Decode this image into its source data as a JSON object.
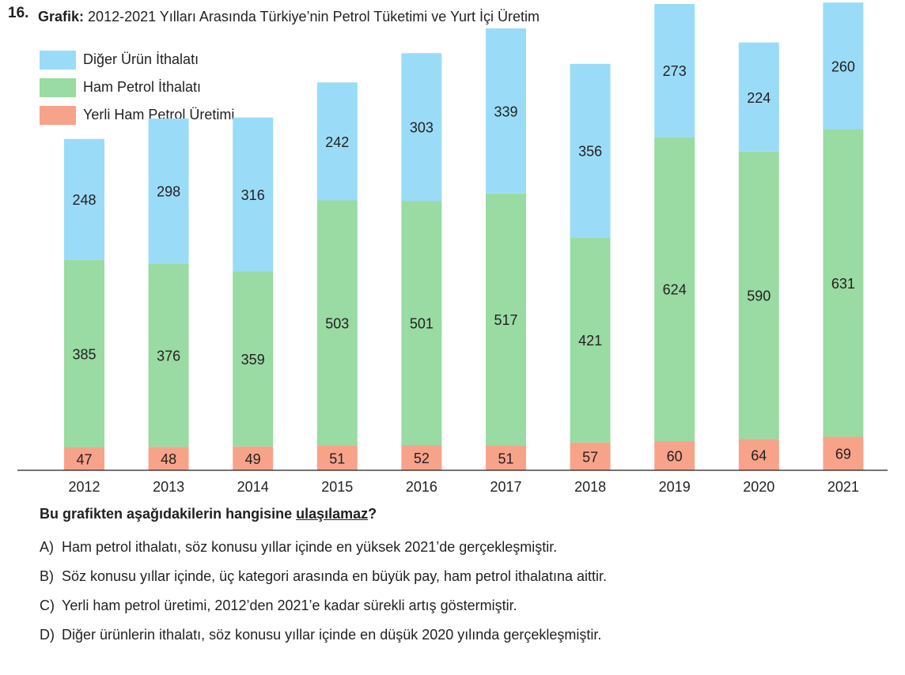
{
  "question": {
    "number": "16.",
    "title_prefix": "Grafik:",
    "title_text": "2012-2021 Yılları Arasında Türkiye’nin Petrol Tüketimi ve Yurt İçi Üretim",
    "prompt_start": "Bu grafikten aşağıdakilerin hangisine ",
    "prompt_emph": "ulaşılamaz",
    "prompt_end": "?",
    "options": [
      {
        "letter": "A)",
        "text": "Ham petrol ithalatı, söz konusu yıllar içinde en yüksek 2021’de gerçekleşmiştir."
      },
      {
        "letter": "B)",
        "text": "Söz konusu yıllar içinde, üç kategori arasında en büyük pay, ham petrol ithalatına aittir."
      },
      {
        "letter": "C)",
        "text": "Yerli ham petrol üretimi, 2012’den 2021’e kadar sürekli artış göstermiştir."
      },
      {
        "letter": "D)",
        "text": "Diğer ürünlerin ithalatı, söz konusu yıllar içinde en düşük 2020 yılında gerçekleşmiştir."
      }
    ]
  },
  "chart_data": {
    "type": "bar",
    "stacked": true,
    "categories": [
      "2012",
      "2013",
      "2014",
      "2015",
      "2016",
      "2017",
      "2018",
      "2019",
      "2020",
      "2021"
    ],
    "series": [
      {
        "name": "Yerli Ham Petrol Üretimi",
        "color": "#f7a38a",
        "values": [
          47,
          48,
          49,
          51,
          52,
          51,
          57,
          60,
          64,
          69
        ]
      },
      {
        "name": "Ham Petrol İthalatı",
        "color": "#99dba3",
        "values": [
          385,
          376,
          359,
          503,
          501,
          517,
          421,
          624,
          590,
          631
        ]
      },
      {
        "name": "Diğer Ürün İthalatı",
        "color": "#9adcf7",
        "values": [
          248,
          298,
          316,
          242,
          303,
          339,
          356,
          273,
          224,
          260
        ]
      }
    ],
    "legend_order": [
      "Diğer Ürün İthalatı",
      "Ham Petrol İthalatı",
      "Yerli Ham Petrol Üretimi"
    ],
    "legend_position": "top-left",
    "grid": false,
    "ylim": [
      0,
      1000
    ]
  }
}
